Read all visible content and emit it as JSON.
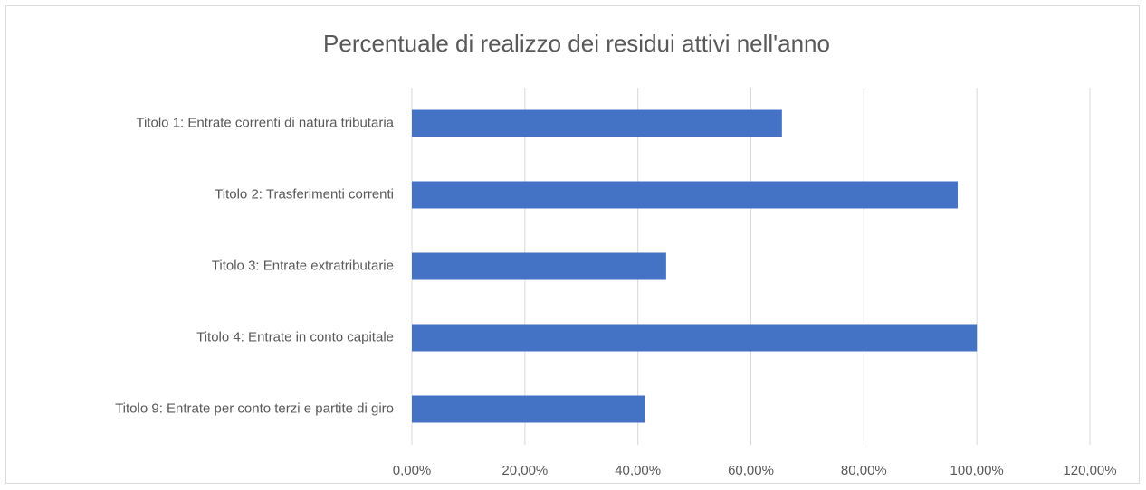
{
  "chart_data": {
    "type": "barh",
    "title": "Percentuale di realizzo dei residui attivi nell'anno",
    "categories": [
      "Titolo 1: Entrate correnti di natura tributaria",
      "Titolo 2: Trasferimenti correnti",
      "Titolo 3: Entrate extratributarie",
      "Titolo 4: Entrate in conto capitale",
      "Titolo 9: Entrate per conto terzi e partite di giro"
    ],
    "values": [
      65.5,
      96.6,
      45.0,
      100,
      41.2
    ],
    "color": "#4472c4",
    "xlim": [
      0,
      120
    ],
    "xticks": [
      {
        "value": 0,
        "label": "0,00%"
      },
      {
        "value": 20,
        "label": "20,00%"
      },
      {
        "value": 40,
        "label": "40,00%"
      },
      {
        "value": 60,
        "label": "60,00%"
      },
      {
        "value": 80,
        "label": "80,00%"
      },
      {
        "value": 100,
        "label": "100,00%"
      },
      {
        "value": 120,
        "label": "120,00%"
      }
    ],
    "grid": true
  }
}
